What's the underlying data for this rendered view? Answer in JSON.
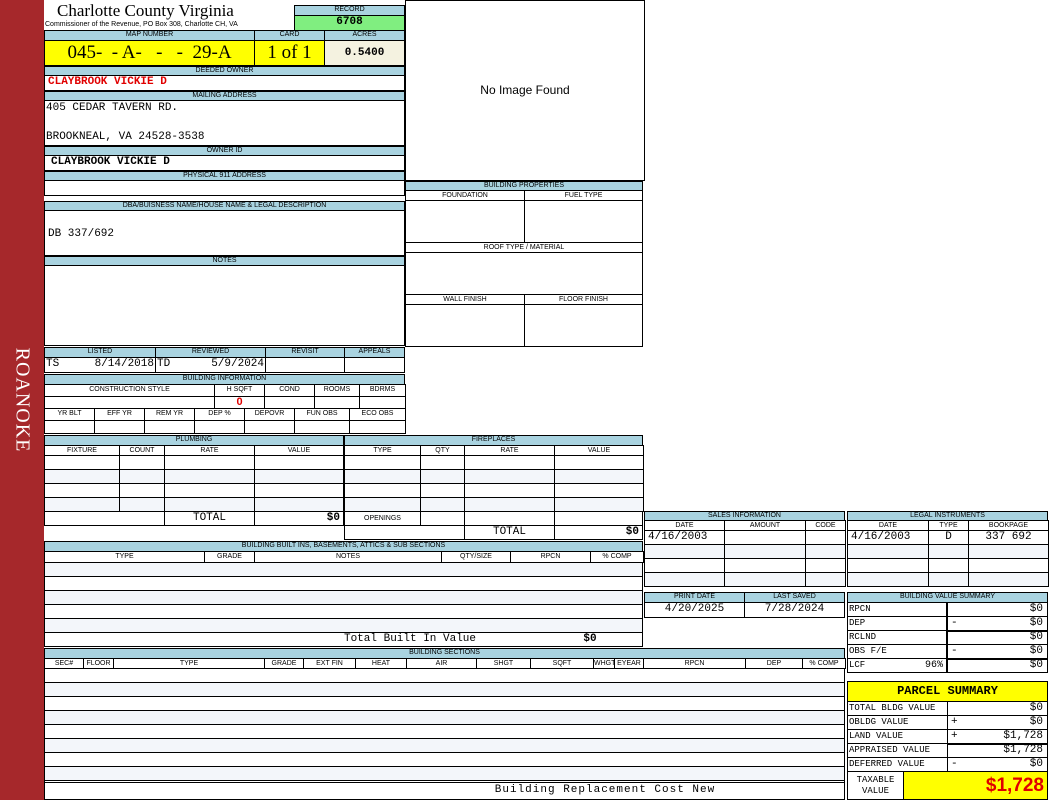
{
  "sidebar": {
    "label": "ROANOKE"
  },
  "header": {
    "county_title": "Charlotte County Virginia",
    "subtitle": "Commissioner of the Revenue, PO Box 308, Charlotte CH, VA",
    "record_label": "RECORD",
    "record_value": "6708",
    "map_label": "MAP NUMBER",
    "map_value": "045-  - A-   -   -  29-A",
    "card_label": "CARD",
    "card_value": "1 of 1",
    "acres_label": "ACRES",
    "acres_value": "0.5400"
  },
  "owner": {
    "deeded_label": "DEEDED OWNER",
    "deeded_value": "CLAYBROOK VICKIE D",
    "mailing_label": "MAILING ADDRESS",
    "mailing_line1": "405 CEDAR TAVERN RD.",
    "mailing_line2": "BROOKNEAL, VA 24528-3538",
    "owner_id_label": "OWNER ID",
    "owner_id_value": "CLAYBROOK VICKIE D",
    "physical_label": "PHYSICAL 911 ADDRESS",
    "physical_value": ""
  },
  "image": {
    "no_image": "No Image Found"
  },
  "building_properties": {
    "title": "BUILDING PROPERTIES",
    "foundation": "FOUNDATION",
    "fuel_type": "FUEL TYPE",
    "roof": "ROOF TYPE / MATERIAL",
    "wall": "WALL FINISH",
    "floor": "FLOOR FINISH"
  },
  "legal": {
    "dba_label": "DBA/BUISNESS NAME/HOUSE NAME & LEGAL DESCRIPTION",
    "dba_value": "DB 337/692",
    "notes_label": "NOTES"
  },
  "review": {
    "listed_label": "LISTED",
    "reviewed_label": "REVIEWED",
    "revisit_label": "REVISIT",
    "appeals_label": "APPEALS",
    "listed_by": "TS",
    "listed_date": "8/14/2018",
    "reviewed_by": "TD",
    "reviewed_date": "5/9/2024"
  },
  "building_info": {
    "title": "BUILDING INFORMATION",
    "cols1": [
      "CONSTRUCTION STYLE",
      "H SQFT",
      "COND",
      "ROOMS",
      "BDRMS"
    ],
    "hsqft_value": "0",
    "cols2": [
      "YR BLT",
      "EFF YR",
      "REM YR",
      "DEP %",
      "DEPOVR",
      "FUN OBS",
      "ECO OBS"
    ]
  },
  "plumbing": {
    "title": "PLUMBING",
    "cols": [
      "FIXTURE",
      "COUNT",
      "RATE",
      "VALUE"
    ],
    "total_label": "TOTAL",
    "total_value": "$0"
  },
  "fireplaces": {
    "title": "FIREPLACES",
    "cols": [
      "TYPE",
      "QTY",
      "RATE",
      "VALUE"
    ],
    "openings_label": "OPENINGS",
    "total_label": "TOTAL",
    "total_value": "$0"
  },
  "built_ins": {
    "title": "BUILDING BUILT INS, BASEMENTS, ATTICS & SUB SECTIONS",
    "cols": [
      "TYPE",
      "GRADE",
      "NOTES",
      "QTY/SIZE",
      "RPCN",
      "% COMP"
    ],
    "total_label": "Total Built In Value",
    "total_value": "$0"
  },
  "sections": {
    "title": "BUILDING SECTIONS",
    "cols": [
      "SEC#",
      "FLOOR",
      "TYPE",
      "GRADE",
      "EXT FIN",
      "HEAT",
      "AIR",
      "SHGT",
      "SQFT",
      "WHGT",
      "EYEAR",
      "RPCN",
      "DEP",
      "% COMP"
    ],
    "footer": "Building Replacement Cost New"
  },
  "sales": {
    "title": "SALES INFORMATION",
    "cols": [
      "DATE",
      "AMOUNT",
      "CODE"
    ],
    "rows": [
      [
        "4/16/2003",
        "",
        ""
      ]
    ]
  },
  "legal_instruments": {
    "title": "LEGAL INSTRUMENTS",
    "cols": [
      "DATE",
      "TYPE",
      "BOOKPAGE"
    ],
    "rows": [
      [
        "4/16/2003",
        "D",
        "337 692"
      ]
    ]
  },
  "dates": {
    "print_label": "PRINT DATE",
    "print_value": "4/20/2025",
    "saved_label": "LAST SAVED",
    "saved_value": "7/28/2024"
  },
  "bvs": {
    "title": "BUILDING VALUE SUMMARY",
    "rows": [
      {
        "label": "RPCN",
        "extra": "",
        "sign": "",
        "value": "$0"
      },
      {
        "label": "DEP",
        "extra": "",
        "sign": "-",
        "value": "$0"
      },
      {
        "label": "RCLND",
        "extra": "",
        "sign": "",
        "value": "$0"
      },
      {
        "label": "OBS F/E",
        "extra": "",
        "sign": "-",
        "value": "$0"
      },
      {
        "label": "LCF",
        "extra": "96%",
        "sign": "",
        "value": "$0"
      }
    ]
  },
  "parcel": {
    "title": "PARCEL SUMMARY",
    "rows": [
      {
        "label": "TOTAL BLDG VALUE",
        "sign": "",
        "value": "$0"
      },
      {
        "label": "OBLDG VALUE",
        "sign": "+",
        "value": "$0"
      },
      {
        "label": "LAND VALUE",
        "sign": "+",
        "value": "$1,728"
      },
      {
        "label": "APPRAISED VALUE",
        "sign": "",
        "value": "$1,728"
      },
      {
        "label": "DEFERRED VALUE",
        "sign": "-",
        "value": "$0"
      }
    ],
    "taxable_label": "TAXABLE VALUE",
    "taxable_value": "$1,728"
  },
  "colors": {
    "band": "#a9d3e0",
    "sidebar": "#a6282b",
    "highlight": "#ffff00",
    "record": "#80ee80",
    "alert": "#e00000"
  }
}
